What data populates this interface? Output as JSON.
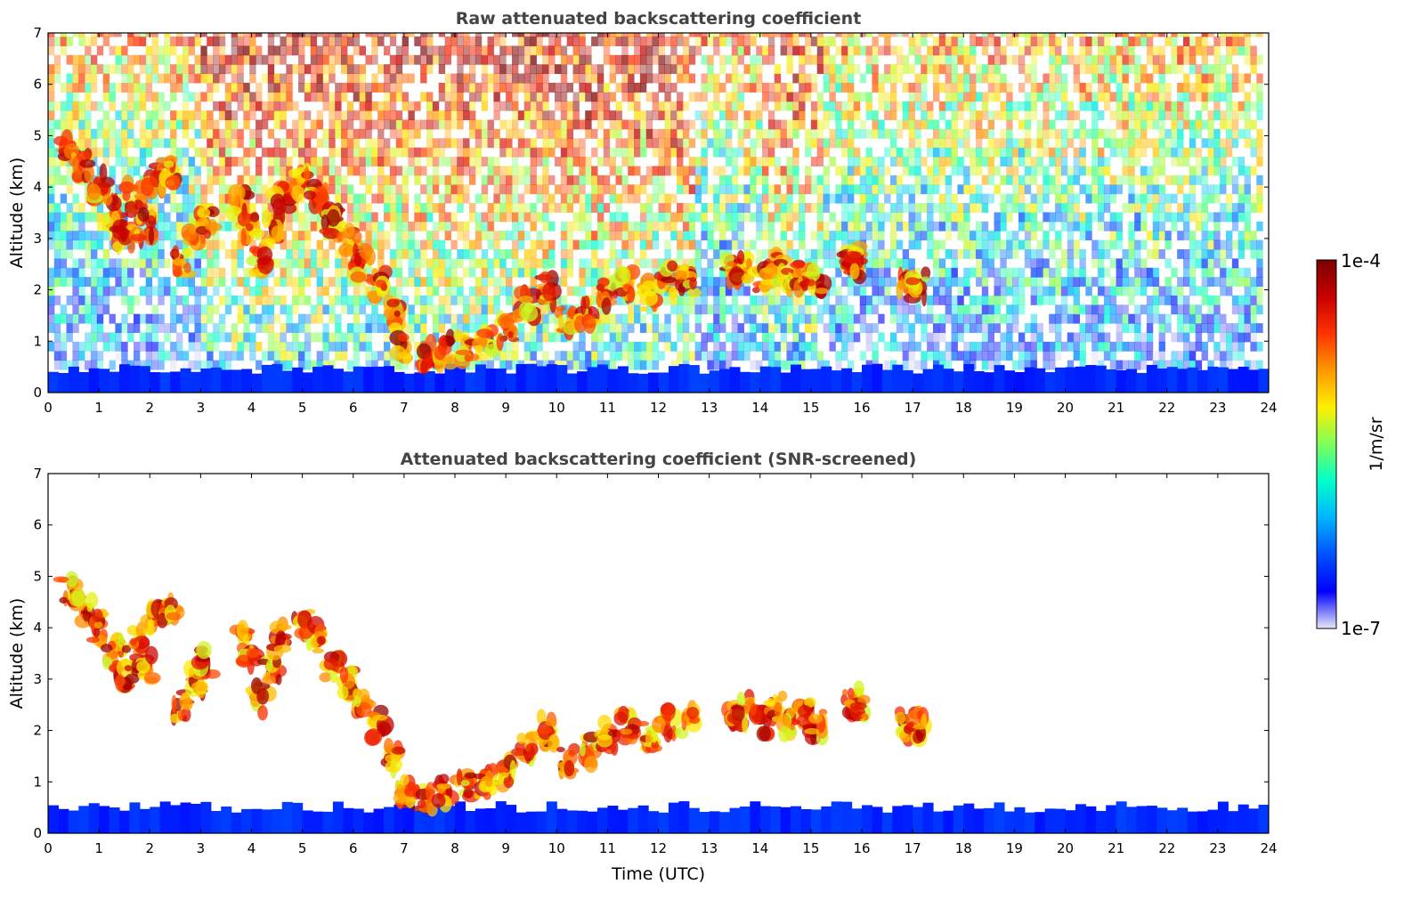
{
  "chart_data": [
    {
      "type": "heatmap",
      "title": "Raw attenuated backscattering coefficient",
      "ylabel": "Altitude (km)",
      "xlabel": "",
      "xlim": [
        0,
        24
      ],
      "ylim": [
        0,
        7
      ],
      "x_ticks": [
        "0",
        "1",
        "2",
        "3",
        "4",
        "5",
        "6",
        "7",
        "8",
        "9",
        "10",
        "11",
        "12",
        "13",
        "14",
        "15",
        "16",
        "17",
        "18",
        "19",
        "20",
        "21",
        "22",
        "23",
        "24"
      ],
      "y_ticks": [
        "0",
        "1",
        "2",
        "3",
        "4",
        "5",
        "6",
        "7"
      ],
      "data_end_time": 23.8,
      "noise": "high",
      "features": [
        {
          "kind": "surface_layer",
          "t0": 0,
          "t1": 23.8,
          "top_km": 0.45
        },
        {
          "kind": "cloud",
          "points": [
            [
              0.4,
              4.7
            ],
            [
              0.7,
              4.4
            ],
            [
              1.0,
              4.0
            ],
            [
              1.3,
              3.5
            ],
            [
              1.5,
              3.1
            ],
            [
              1.7,
              3.8
            ],
            [
              1.9,
              3.2
            ],
            [
              2.1,
              4.2
            ],
            [
              2.4,
              4.3
            ],
            [
              2.6,
              2.5
            ],
            [
              2.9,
              3.0
            ],
            [
              3.1,
              3.3
            ]
          ]
        },
        {
          "kind": "cloud",
          "points": [
            [
              3.8,
              3.7
            ],
            [
              4.0,
              3.3
            ],
            [
              4.2,
              2.6
            ],
            [
              4.4,
              3.2
            ],
            [
              4.6,
              3.8
            ]
          ]
        },
        {
          "kind": "cloud",
          "points": [
            [
              5.0,
              4.1
            ],
            [
              5.3,
              3.8
            ],
            [
              5.6,
              3.3
            ],
            [
              5.9,
              2.9
            ],
            [
              6.2,
              2.5
            ],
            [
              6.5,
              2.1
            ],
            [
              6.8,
              1.5
            ]
          ]
        },
        {
          "kind": "cloud",
          "points": [
            [
              7.0,
              0.8
            ],
            [
              7.4,
              0.7
            ],
            [
              7.8,
              0.8
            ],
            [
              8.2,
              0.9
            ],
            [
              8.6,
              1.0
            ],
            [
              9.0,
              1.2
            ]
          ]
        },
        {
          "kind": "cloud",
          "points": [
            [
              9.4,
              1.7
            ],
            [
              9.8,
              2.0
            ],
            [
              10.2,
              1.4
            ],
            [
              10.6,
              1.6
            ],
            [
              11.0,
              1.9
            ],
            [
              11.4,
              2.1
            ],
            [
              11.8,
              1.9
            ],
            [
              12.2,
              2.2
            ],
            [
              12.6,
              2.2
            ]
          ]
        },
        {
          "kind": "cloud",
          "points": [
            [
              13.5,
              2.3
            ],
            [
              13.7,
              2.4
            ],
            [
              14.0,
              2.2
            ],
            [
              14.3,
              2.4
            ],
            [
              14.6,
              2.2
            ],
            [
              14.9,
              2.3
            ],
            [
              15.1,
              2.1
            ]
          ]
        },
        {
          "kind": "cloud",
          "points": [
            [
              15.8,
              2.6
            ],
            [
              15.9,
              2.5
            ],
            [
              16.9,
              2.1
            ],
            [
              17.1,
              2.1
            ]
          ]
        }
      ]
    },
    {
      "type": "heatmap",
      "title": "Attenuated backscattering coefficient (SNR-screened)",
      "ylabel": "Altitude (km)",
      "xlabel": "Time (UTC)",
      "xlim": [
        0,
        24
      ],
      "ylim": [
        0,
        7
      ],
      "x_ticks": [
        "0",
        "1",
        "2",
        "3",
        "4",
        "5",
        "6",
        "7",
        "8",
        "9",
        "10",
        "11",
        "12",
        "13",
        "14",
        "15",
        "16",
        "17",
        "18",
        "19",
        "20",
        "21",
        "22",
        "23",
        "24"
      ],
      "y_ticks": [
        "0",
        "1",
        "2",
        "3",
        "4",
        "5",
        "6",
        "7"
      ],
      "data_end_time": 23.8,
      "noise": "screened",
      "features": [
        {
          "kind": "surface_layer",
          "t0": 0,
          "t1": 23.8,
          "top_km": 0.5
        },
        {
          "kind": "cloud",
          "points": [
            [
              0.4,
              4.7
            ],
            [
              0.7,
              4.4
            ],
            [
              1.0,
              4.0
            ],
            [
              1.3,
              3.5
            ],
            [
              1.5,
              3.1
            ],
            [
              1.7,
              3.8
            ],
            [
              1.9,
              3.2
            ],
            [
              2.1,
              4.2
            ],
            [
              2.4,
              4.3
            ],
            [
              2.6,
              2.5
            ],
            [
              2.9,
              3.0
            ],
            [
              3.1,
              3.3
            ]
          ]
        },
        {
          "kind": "cloud",
          "points": [
            [
              3.8,
              3.7
            ],
            [
              4.0,
              3.3
            ],
            [
              4.2,
              2.6
            ],
            [
              4.4,
              3.2
            ],
            [
              4.6,
              3.8
            ]
          ]
        },
        {
          "kind": "cloud",
          "points": [
            [
              5.0,
              4.1
            ],
            [
              5.3,
              3.8
            ],
            [
              5.6,
              3.3
            ],
            [
              5.9,
              2.9
            ],
            [
              6.2,
              2.5
            ],
            [
              6.5,
              2.1
            ],
            [
              6.8,
              1.5
            ]
          ]
        },
        {
          "kind": "cloud",
          "points": [
            [
              7.0,
              0.8
            ],
            [
              7.4,
              0.7
            ],
            [
              7.8,
              0.8
            ],
            [
              8.2,
              0.9
            ],
            [
              8.6,
              1.0
            ],
            [
              9.0,
              1.2
            ]
          ]
        },
        {
          "kind": "cloud",
          "points": [
            [
              9.4,
              1.7
            ],
            [
              9.8,
              2.0
            ],
            [
              10.2,
              1.4
            ],
            [
              10.6,
              1.6
            ],
            [
              11.0,
              1.9
            ],
            [
              11.4,
              2.1
            ],
            [
              11.8,
              1.9
            ],
            [
              12.2,
              2.2
            ],
            [
              12.6,
              2.2
            ]
          ]
        },
        {
          "kind": "cloud",
          "points": [
            [
              13.5,
              2.3
            ],
            [
              13.7,
              2.4
            ],
            [
              14.0,
              2.2
            ],
            [
              14.3,
              2.4
            ],
            [
              14.6,
              2.2
            ],
            [
              14.9,
              2.3
            ],
            [
              15.1,
              2.1
            ]
          ]
        },
        {
          "kind": "cloud",
          "points": [
            [
              15.8,
              2.6
            ],
            [
              15.9,
              2.5
            ],
            [
              16.9,
              2.1
            ],
            [
              17.1,
              2.1
            ]
          ]
        }
      ]
    }
  ],
  "colorbar": {
    "max_label": "1e-4",
    "min_label": "1e-7",
    "unit_label": "1/m/sr",
    "colormap": [
      "#e8e8f8",
      "#0000ff",
      "#0050ff",
      "#00b4ff",
      "#00ffcc",
      "#7dff5a",
      "#ffee00",
      "#ff9900",
      "#ff3300",
      "#c80000",
      "#7a0000"
    ]
  }
}
